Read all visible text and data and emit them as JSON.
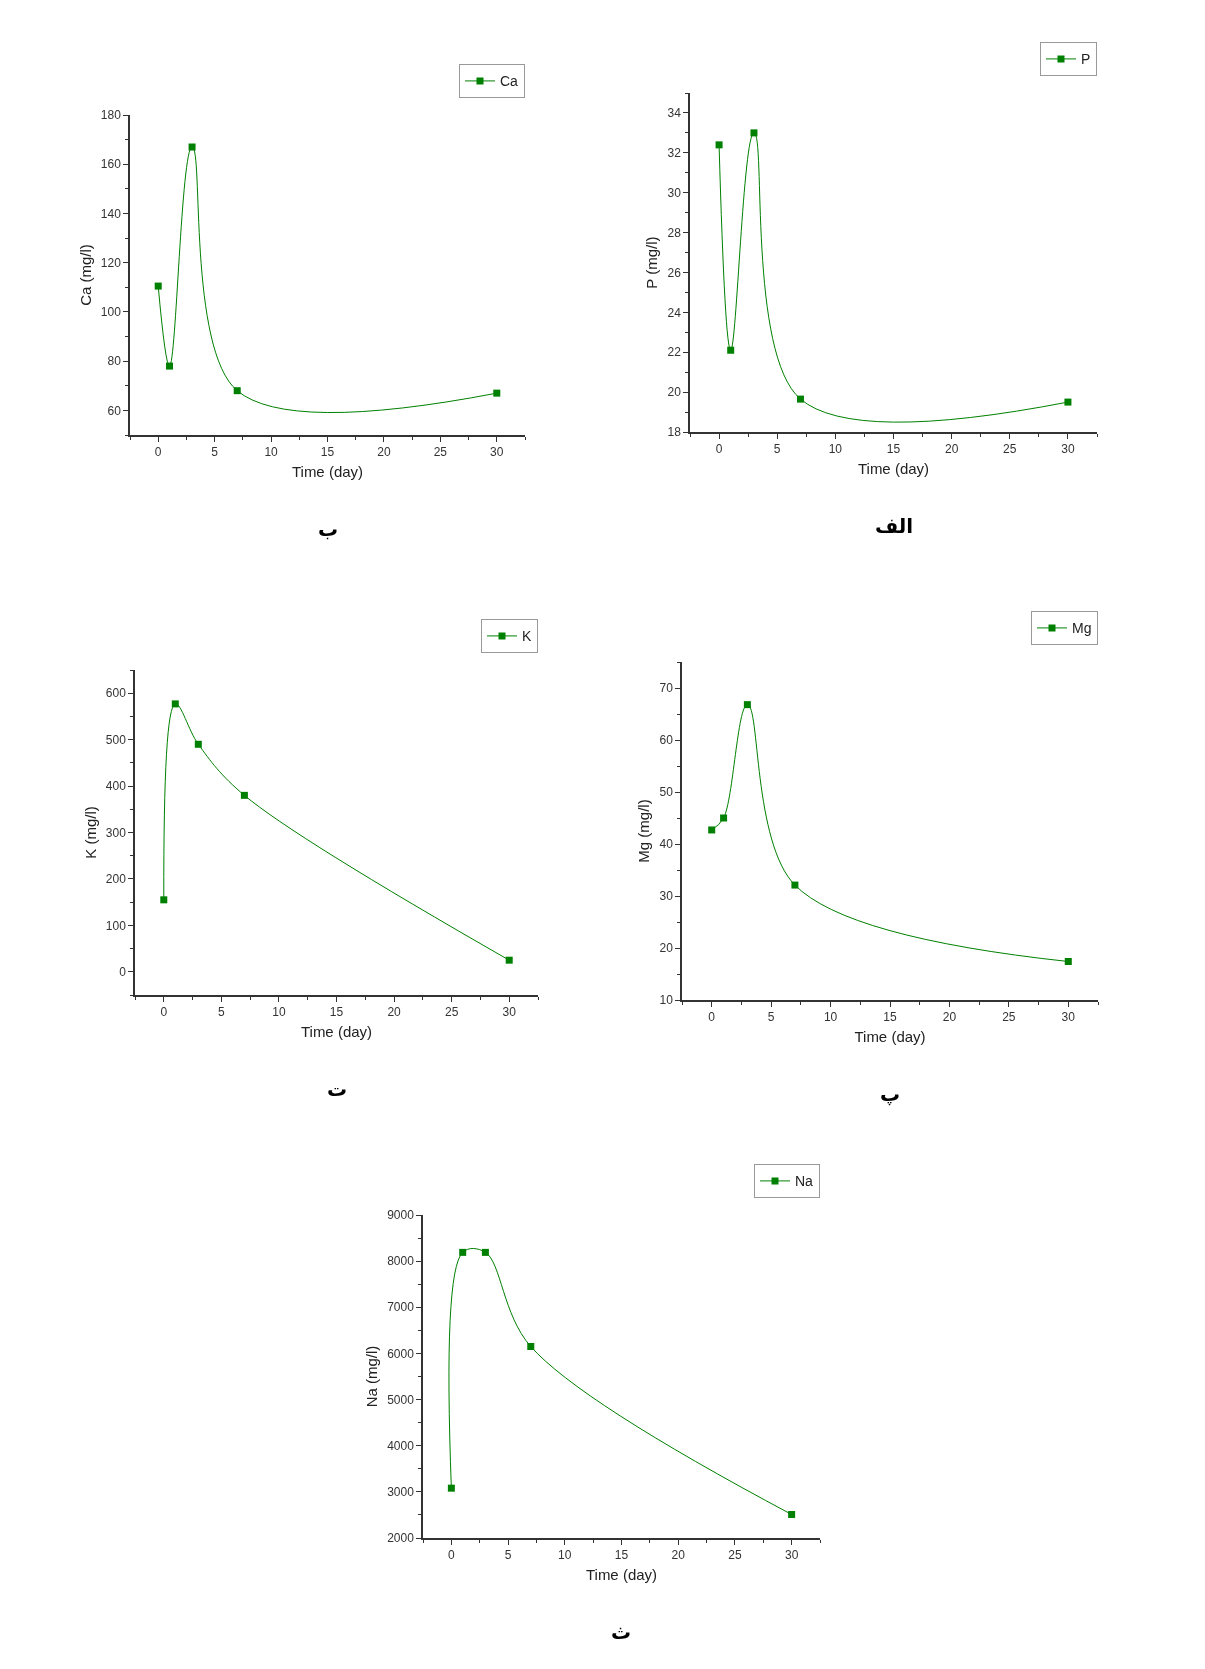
{
  "chart_data": [
    {
      "type": "line",
      "title": "ب",
      "xlabel": "Time (day)",
      "ylabel": "Ca (mg/l)",
      "x": [
        0,
        1,
        3,
        7,
        30
      ],
      "xlim": [
        -2.5,
        32.5
      ],
      "xticks": [
        0,
        5,
        10,
        15,
        20,
        25,
        30
      ],
      "ylim": [
        50,
        180
      ],
      "yticks": [
        60,
        80,
        100,
        120,
        140,
        160,
        180
      ],
      "legend": "top right",
      "marker": "square",
      "line_style": "solid",
      "series": [
        {
          "name": "Ca",
          "color": "#008000",
          "values": [
            110.5,
            78,
            167,
            68,
            67
          ]
        }
      ]
    },
    {
      "type": "line",
      "title": "الف",
      "xlabel": "Time (day)",
      "ylabel": "P (mg/l)",
      "x": [
        0,
        1,
        3,
        7,
        30
      ],
      "xlim": [
        -2.5,
        32.5
      ],
      "xticks": [
        0,
        5,
        10,
        15,
        20,
        25,
        30
      ],
      "ylim": [
        18,
        35
      ],
      "yticks": [
        18,
        20,
        22,
        24,
        26,
        28,
        30,
        32,
        34
      ],
      "legend": "top right",
      "marker": "square",
      "line_style": "solid",
      "series": [
        {
          "name": "P",
          "color": "#008000",
          "values": [
            32.4,
            22.1,
            33.0,
            19.65,
            19.5
          ]
        }
      ]
    },
    {
      "type": "line",
      "title": "ت",
      "xlabel": "Time (day)",
      "ylabel": "K (mg/l)",
      "x": [
        0,
        1,
        3,
        7,
        30
      ],
      "xlim": [
        -2.5,
        32.5
      ],
      "xticks": [
        0,
        5,
        10,
        15,
        20,
        25,
        30
      ],
      "ylim": [
        -50,
        650
      ],
      "yticks": [
        0,
        100,
        200,
        300,
        400,
        500,
        600
      ],
      "legend": "top right",
      "marker": "square",
      "line_style": "solid",
      "series": [
        {
          "name": "K",
          "color": "#008000",
          "values": [
            155,
            577,
            490,
            380,
            25
          ]
        }
      ]
    },
    {
      "type": "line",
      "title": "پ",
      "xlabel": "Time (day)",
      "ylabel": "Mg (mg/l)",
      "x": [
        0,
        1,
        3,
        7,
        30
      ],
      "xlim": [
        -2.5,
        32.5
      ],
      "xticks": [
        0,
        5,
        10,
        15,
        20,
        25,
        30
      ],
      "ylim": [
        10,
        75
      ],
      "yticks": [
        10,
        20,
        30,
        40,
        50,
        60,
        70
      ],
      "legend": "top right",
      "marker": "square",
      "line_style": "solid",
      "series": [
        {
          "name": "Mg",
          "color": "#008000",
          "values": [
            42.7,
            45,
            66.8,
            32.1,
            17.4
          ]
        }
      ]
    },
    {
      "type": "line",
      "title": "ث",
      "xlabel": "Time (day)",
      "ylabel": "Na (mg/l)",
      "x": [
        0,
        1,
        3,
        7,
        30
      ],
      "xlim": [
        -2.5,
        32.5
      ],
      "xticks": [
        0,
        5,
        10,
        15,
        20,
        25,
        30
      ],
      "ylim": [
        2000,
        9000
      ],
      "yticks": [
        2000,
        3000,
        4000,
        5000,
        6000,
        7000,
        8000,
        9000
      ],
      "legend": "top right",
      "marker": "square",
      "line_style": "solid",
      "series": [
        {
          "name": "Na",
          "color": "#008000",
          "values": [
            3080,
            8190,
            8190,
            6150,
            2510
          ]
        }
      ]
    }
  ]
}
